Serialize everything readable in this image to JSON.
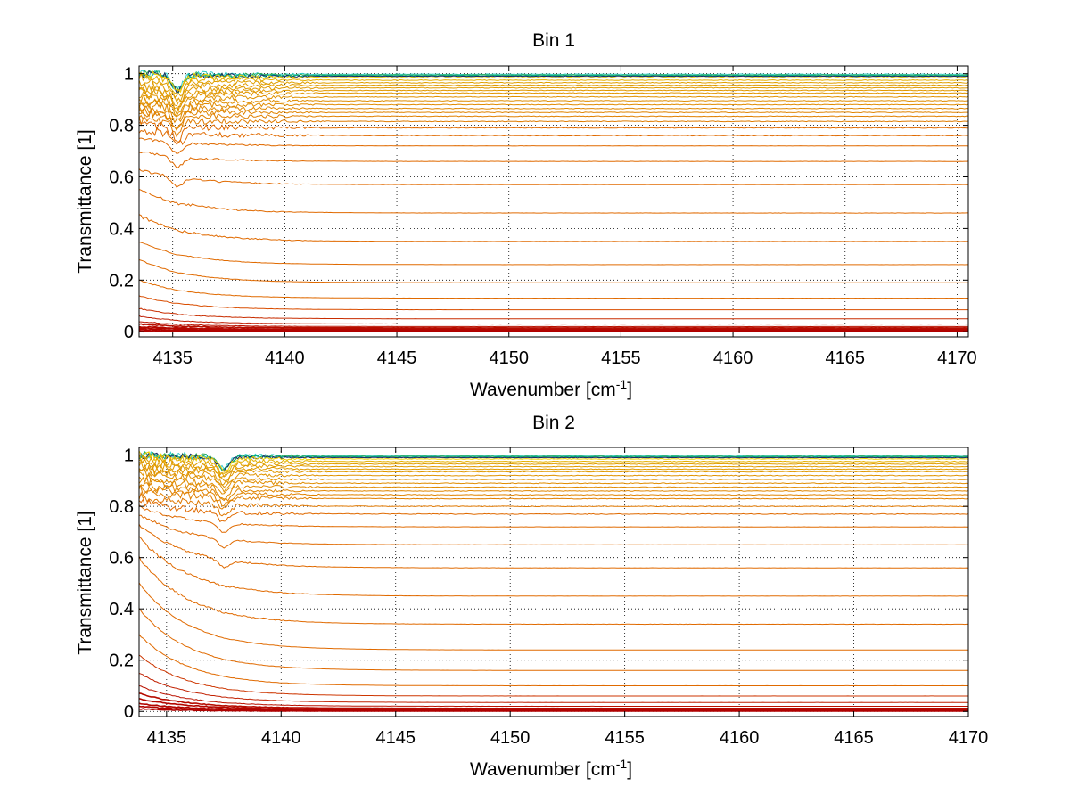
{
  "chart_data": [
    {
      "type": "line",
      "title": "Bin 1",
      "xlabel_main": "Wavenumber [cm",
      "xlabel_sup": "-1",
      "xlabel_end": "]",
      "ylabel": "Transmittance [1]",
      "xlim": [
        4133.5,
        4170.5
      ],
      "ylim": [
        -0.02,
        1.03
      ],
      "xticks": [
        4135,
        4140,
        4145,
        4150,
        4155,
        4160,
        4165,
        4170
      ],
      "yticks": [
        0,
        0.2,
        0.4,
        0.6,
        0.8,
        1
      ],
      "ytick_labels": [
        "0",
        "0.2",
        "0.4",
        "0.6",
        "0.8",
        "1"
      ],
      "grid": true,
      "series_levels": [
        0.985,
        0.975,
        0.965,
        0.955,
        0.945,
        0.935,
        0.925,
        0.91,
        0.895,
        0.88,
        0.865,
        0.85,
        0.835,
        0.815,
        0.79,
        0.76,
        0.72,
        0.66,
        0.57,
        0.46,
        0.35,
        0.26,
        0.19,
        0.13,
        0.085,
        0.05,
        0.03,
        0.02,
        0.015,
        0.01,
        0.008,
        0.005,
        0.003,
        0.001
      ],
      "near_one_levels": [
        0.998,
        0.995,
        0.992,
        0.99
      ],
      "start_levels": [
        1.0,
        0.99,
        0.97,
        0.95,
        0.93,
        0.92,
        0.9,
        0.89,
        0.88,
        0.87,
        0.86,
        0.85,
        0.84,
        0.82,
        0.8,
        0.78,
        0.75,
        0.7,
        0.63,
        0.55,
        0.45,
        0.35,
        0.28,
        0.2,
        0.14,
        0.09,
        0.06,
        0.04,
        0.03,
        0.02,
        0.015,
        0.01,
        0.005,
        0.002
      ],
      "dip_x": 4135.2,
      "dip_depth": 0.06
    },
    {
      "type": "line",
      "title": "Bin 2",
      "xlabel_main": "Wavenumber [cm",
      "xlabel_sup": "-1",
      "xlabel_end": "]",
      "ylabel": "Transmittance [1]",
      "xlim": [
        4133.8,
        4170.0
      ],
      "ylim": [
        -0.02,
        1.03
      ],
      "xticks": [
        4135,
        4140,
        4145,
        4150,
        4155,
        4160,
        4165,
        4170
      ],
      "yticks": [
        0,
        0.2,
        0.4,
        0.6,
        0.8,
        1
      ],
      "ytick_labels": [
        "0",
        "0.2",
        "0.4",
        "0.6",
        "0.8",
        "1"
      ],
      "grid": true,
      "series_levels": [
        0.985,
        0.975,
        0.965,
        0.955,
        0.945,
        0.935,
        0.92,
        0.905,
        0.89,
        0.875,
        0.86,
        0.845,
        0.83,
        0.8,
        0.77,
        0.72,
        0.65,
        0.56,
        0.45,
        0.34,
        0.24,
        0.16,
        0.1,
        0.06,
        0.035,
        0.02,
        0.012,
        0.008,
        0.005,
        0.003,
        0.001
      ],
      "near_one_levels": [
        0.998,
        0.995,
        0.992,
        0.99
      ],
      "start_levels": [
        1.0,
        0.99,
        0.98,
        0.97,
        0.96,
        0.95,
        0.94,
        0.93,
        0.91,
        0.9,
        0.88,
        0.87,
        0.86,
        0.84,
        0.82,
        0.8,
        0.77,
        0.73,
        0.68,
        0.6,
        0.5,
        0.4,
        0.3,
        0.22,
        0.15,
        0.1,
        0.07,
        0.05,
        0.03,
        0.02,
        0.01
      ],
      "dip_x": 4137.5,
      "dip_depth": 0.05
    }
  ]
}
